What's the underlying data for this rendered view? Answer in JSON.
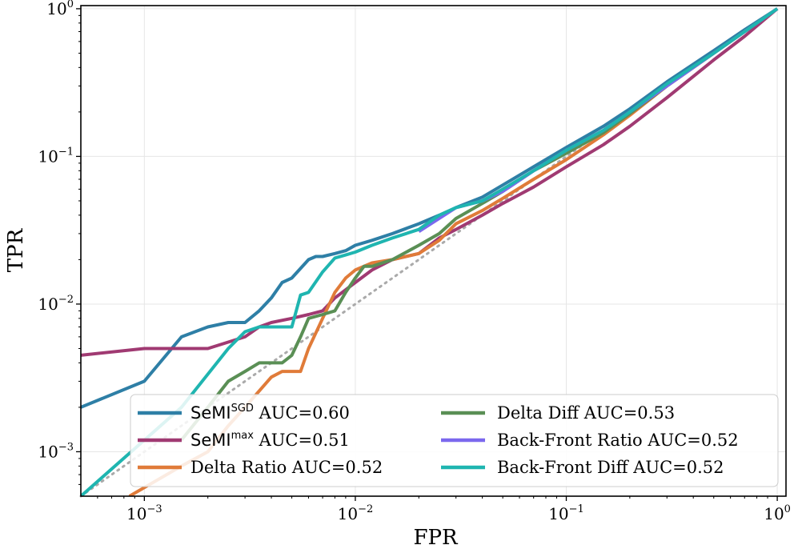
{
  "chart_data": {
    "type": "line",
    "x_scale": "log",
    "y_scale": "log",
    "xlabel": "FPR",
    "ylabel": "TPR",
    "xlim": [
      0.0005,
      1.1
    ],
    "ylim": [
      0.0005,
      1.05
    ],
    "grid": true,
    "legend_position": "lower-right",
    "x_ticks": [
      {
        "base": "10",
        "exp": "−3",
        "value": 0.001
      },
      {
        "base": "10",
        "exp": "−2",
        "value": 0.01
      },
      {
        "base": "10",
        "exp": "−1",
        "value": 0.1
      },
      {
        "base": "10",
        "exp": "0",
        "value": 1
      }
    ],
    "y_ticks": [
      {
        "base": "10",
        "exp": "−3",
        "value": 0.001
      },
      {
        "base": "10",
        "exp": "−2",
        "value": 0.01
      },
      {
        "base": "10",
        "exp": "−1",
        "value": 0.1
      },
      {
        "base": "10",
        "exp": "0",
        "value": 1
      }
    ],
    "baseline": {
      "name": "chance",
      "style": "dotted",
      "color": "#aaaaaa",
      "x": [
        0.0005,
        1
      ],
      "y": [
        0.0005,
        1
      ]
    },
    "series": [
      {
        "name": "SeMI SGD",
        "label_base": "SeMI",
        "label_sup": "SGD",
        "label_rest": " AUC=0.60",
        "auc": 0.6,
        "color": "#2E7FA6",
        "x": [
          0.0005,
          0.001,
          0.0015,
          0.002,
          0.0025,
          0.003,
          0.0035,
          0.004,
          0.0045,
          0.005,
          0.006,
          0.0065,
          0.007,
          0.008,
          0.009,
          0.01,
          0.012,
          0.015,
          0.02,
          0.025,
          0.03,
          0.04,
          0.05,
          0.07,
          0.1,
          0.15,
          0.2,
          0.3,
          0.5,
          0.7,
          1.0
        ],
        "y": [
          0.002,
          0.003,
          0.006,
          0.007,
          0.0075,
          0.0075,
          0.009,
          0.011,
          0.014,
          0.015,
          0.02,
          0.021,
          0.021,
          0.022,
          0.023,
          0.025,
          0.027,
          0.03,
          0.035,
          0.04,
          0.045,
          0.053,
          0.064,
          0.085,
          0.115,
          0.16,
          0.21,
          0.32,
          0.52,
          0.72,
          1.0
        ]
      },
      {
        "name": "SeMI max",
        "label_base": "SeMI",
        "label_sup": "max",
        "label_rest": " AUC=0.51",
        "auc": 0.51,
        "color": "#A03A72",
        "x": [
          0.0005,
          0.001,
          0.002,
          0.003,
          0.0035,
          0.004,
          0.005,
          0.006,
          0.007,
          0.008,
          0.01,
          0.012,
          0.015,
          0.02,
          0.025,
          0.03,
          0.04,
          0.05,
          0.07,
          0.1,
          0.15,
          0.2,
          0.3,
          0.5,
          0.7,
          1.0
        ],
        "y": [
          0.0045,
          0.005,
          0.005,
          0.006,
          0.007,
          0.0075,
          0.008,
          0.0085,
          0.009,
          0.011,
          0.014,
          0.017,
          0.02,
          0.022,
          0.028,
          0.032,
          0.04,
          0.048,
          0.062,
          0.085,
          0.12,
          0.16,
          0.25,
          0.45,
          0.65,
          1.0
        ]
      },
      {
        "name": "Delta Ratio",
        "label_base": "Delta Ratio AUC=0.52",
        "label_sup": "",
        "label_rest": "",
        "auc": 0.52,
        "color": "#E07B39",
        "x": [
          0.00085,
          0.0015,
          0.002,
          0.0025,
          0.003,
          0.004,
          0.0045,
          0.005,
          0.0055,
          0.006,
          0.007,
          0.008,
          0.009,
          0.01,
          0.012,
          0.015,
          0.02,
          0.025,
          0.03,
          0.04,
          0.05,
          0.07,
          0.1,
          0.15,
          0.2,
          0.3,
          0.5,
          0.7,
          1.0
        ],
        "y": [
          0.0005,
          0.0008,
          0.001,
          0.0015,
          0.002,
          0.0032,
          0.0035,
          0.0035,
          0.0035,
          0.005,
          0.008,
          0.012,
          0.015,
          0.017,
          0.019,
          0.02,
          0.022,
          0.027,
          0.035,
          0.043,
          0.052,
          0.07,
          0.095,
          0.14,
          0.19,
          0.3,
          0.5,
          0.7,
          1.0
        ]
      },
      {
        "name": "Delta Diff",
        "label_base": "Delta Diff AUC=0.53",
        "label_sup": "",
        "label_rest": "",
        "auc": 0.53,
        "color": "#5A8F55",
        "x": [
          0.0015,
          0.002,
          0.0025,
          0.003,
          0.0035,
          0.004,
          0.0045,
          0.005,
          0.0055,
          0.006,
          0.007,
          0.008,
          0.009,
          0.01,
          0.011,
          0.012,
          0.015,
          0.02,
          0.025,
          0.03,
          0.04,
          0.05,
          0.07,
          0.1,
          0.15,
          0.2,
          0.3,
          0.5,
          0.7,
          1.0
        ],
        "y": [
          0.0012,
          0.002,
          0.003,
          0.0035,
          0.004,
          0.004,
          0.004,
          0.0045,
          0.006,
          0.008,
          0.0085,
          0.009,
          0.012,
          0.015,
          0.018,
          0.018,
          0.02,
          0.025,
          0.03,
          0.038,
          0.048,
          0.058,
          0.08,
          0.105,
          0.145,
          0.195,
          0.3,
          0.5,
          0.7,
          1.0
        ]
      },
      {
        "name": "Back-Front Ratio",
        "label_base": "Back-Front Ratio AUC=0.52",
        "label_sup": "",
        "label_rest": "",
        "auc": 0.52,
        "color": "#7B68EE",
        "x": [
          0.02,
          0.03,
          0.04,
          0.05,
          0.07,
          0.1,
          0.15,
          0.2,
          0.3,
          0.5,
          0.7,
          1.0
        ],
        "y": [
          0.031,
          0.045,
          0.05,
          0.058,
          0.08,
          0.11,
          0.15,
          0.2,
          0.3,
          0.5,
          0.7,
          1.0
        ]
      },
      {
        "name": "Back-Front Diff",
        "label_base": "Back-Front Diff AUC=0.52",
        "label_sup": "",
        "label_rest": "",
        "auc": 0.52,
        "color": "#1FB5B0",
        "x": [
          0.0005,
          0.0015,
          0.0025,
          0.003,
          0.0035,
          0.004,
          0.0045,
          0.005,
          0.0055,
          0.006,
          0.007,
          0.008,
          0.009,
          0.01,
          0.012,
          0.015,
          0.02,
          0.025,
          0.03,
          0.04,
          0.05,
          0.07,
          0.1,
          0.15,
          0.2,
          0.3,
          0.5,
          0.7,
          1.0
        ],
        "y": [
          0.0005,
          0.002,
          0.005,
          0.0065,
          0.007,
          0.007,
          0.007,
          0.007,
          0.0115,
          0.012,
          0.0165,
          0.0205,
          0.0215,
          0.0225,
          0.025,
          0.028,
          0.032,
          0.04,
          0.045,
          0.05,
          0.06,
          0.08,
          0.11,
          0.15,
          0.2,
          0.31,
          0.5,
          0.7,
          1.0
        ]
      }
    ]
  }
}
